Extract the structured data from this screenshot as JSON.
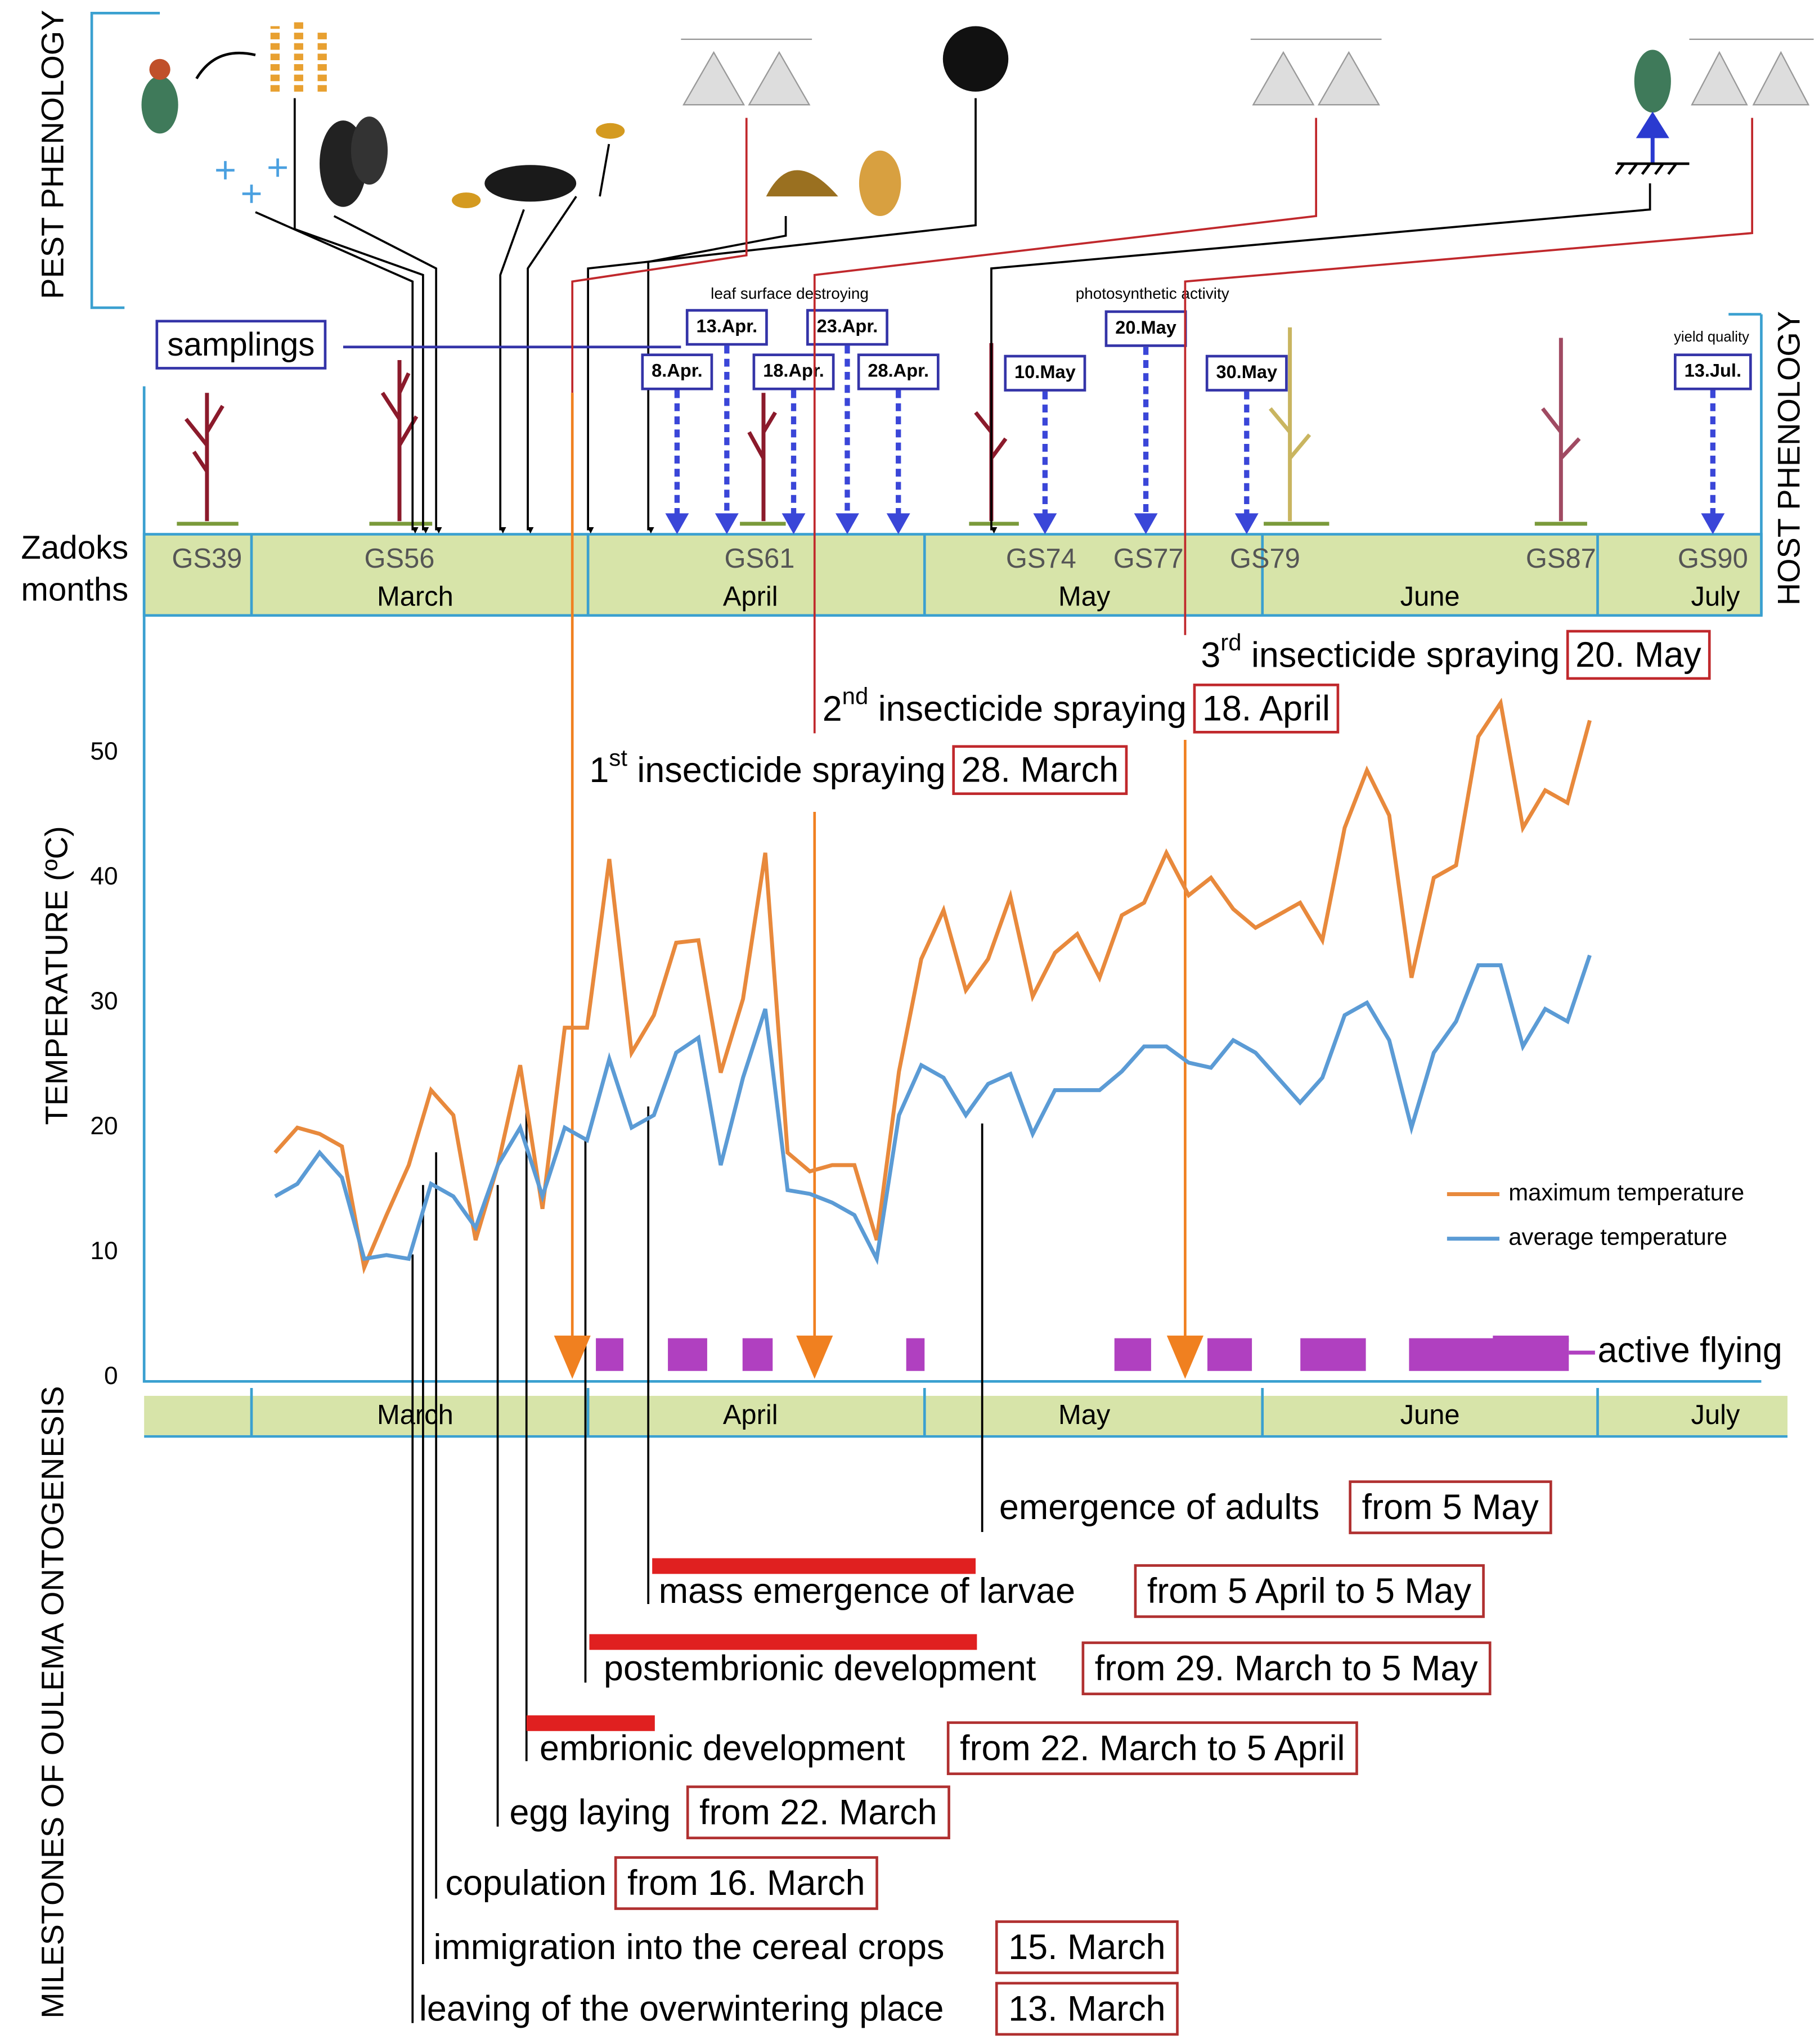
{
  "chart_data": {
    "type": "line",
    "ylabel": "TEMPERATURE (ºC)",
    "months": [
      "March",
      "April",
      "May",
      "June",
      "July"
    ],
    "ylim": [
      0,
      61
    ],
    "yticks": [
      0,
      10,
      20,
      30,
      40,
      50
    ],
    "series": [
      {
        "name": "maximum temperature",
        "color": "#e8893c",
        "values": [
          18,
          20,
          19.5,
          18.5,
          8.8,
          13,
          17,
          23,
          21,
          11,
          17,
          25,
          13.5,
          28,
          28,
          41.5,
          26,
          29,
          34.8,
          35,
          24.4,
          30.3,
          42,
          18,
          16.5,
          17,
          17,
          11,
          24.5,
          33.5,
          37.4,
          31,
          33.5,
          38.5,
          30.5,
          34,
          35.5,
          32,
          37,
          38,
          42,
          38.6,
          40,
          37.5,
          36,
          37,
          38,
          35,
          44,
          48.6,
          45,
          32,
          40,
          41,
          51.3,
          54,
          44,
          47,
          46,
          52.6
        ]
      },
      {
        "name": "average temperature",
        "color": "#5b9bd5",
        "values": [
          14.5,
          15.5,
          18,
          16,
          9.5,
          9.8,
          9.5,
          15.5,
          14.5,
          12,
          17,
          20,
          14.5,
          20,
          19,
          25.5,
          20,
          21,
          26,
          27.2,
          17,
          24,
          29.5,
          15,
          14.7,
          14,
          13,
          9.5,
          21,
          25,
          24,
          21,
          23.5,
          24.3,
          19.5,
          23,
          23,
          23,
          24.5,
          26.5,
          26.5,
          25.2,
          24.8,
          27,
          26,
          24,
          22,
          24,
          29,
          30,
          27,
          20,
          26,
          28.5,
          33,
          33,
          26.5,
          29.5,
          28.5,
          33.8
        ]
      }
    ],
    "active_flying_label": "active flying"
  },
  "pest_phenology": {
    "label": "PEST PHENOLOGY"
  },
  "host_phenology": {
    "label": "HOST PHENOLOGY",
    "row_labels": [
      "Zadoks",
      "months"
    ],
    "growth_stages": [
      "GS39",
      "GS56",
      "GS61",
      "GS74",
      "GS77",
      "GS79",
      "GS87",
      "GS90"
    ],
    "samplings": {
      "label": "samplings",
      "dates": [
        "8.Apr.",
        "13.Apr.",
        "18.Apr.",
        "23.Apr.",
        "28.Apr.",
        "10.May",
        "20.May",
        "30.May",
        "13.Jul."
      ]
    },
    "notes": [
      "leaf surface destroying",
      "photosynthetic activity",
      "yield quality"
    ]
  },
  "sprayings": [
    {
      "ordinal": "1",
      "suffix": "st",
      "text": " insecticide spraying",
      "date": "28. March"
    },
    {
      "ordinal": "2",
      "suffix": "nd",
      "text": " insecticide spraying",
      "date": "18. April"
    },
    {
      "ordinal": "3",
      "suffix": "rd",
      "text": " insecticide spraying",
      "date": "20. May"
    }
  ],
  "milestones": {
    "label": "MILESTONES OF OULEMA ONTOGENESIS",
    "events": [
      {
        "event": "emergence of adults",
        "period": "from 5 May"
      },
      {
        "event": "mass emergence of larvae",
        "period": "from 5 April to 5 May"
      },
      {
        "event": "postembrionic development",
        "period": "from 29. March to 5 May"
      },
      {
        "event": "embrionic  development",
        "period": "from 22. March to 5 April"
      },
      {
        "event": "egg laying",
        "period": "from 22. March"
      },
      {
        "event": "copulation",
        "period": "from  16. March"
      },
      {
        "event": "immigration into the cereal crops",
        "period": "15. March"
      },
      {
        "event": "leaving of the overwintering place",
        "period": "13. March"
      }
    ]
  }
}
